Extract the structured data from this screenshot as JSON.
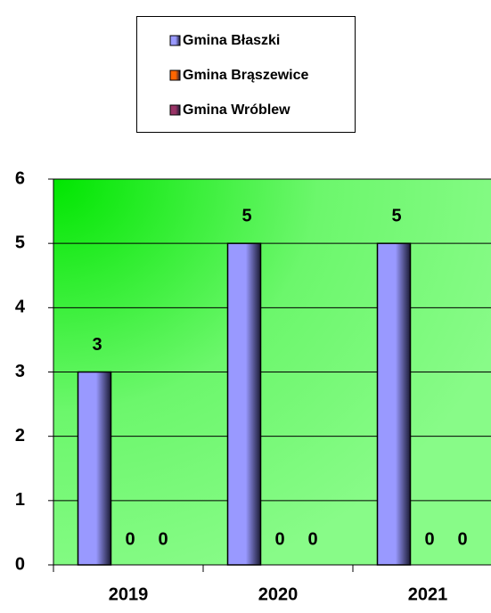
{
  "chart_data": {
    "type": "bar",
    "categories": [
      "2019",
      "2020",
      "2021"
    ],
    "series": [
      {
        "name": "Gmina Błaszki",
        "color": "#9999ff",
        "values": [
          3,
          5,
          5
        ]
      },
      {
        "name": "Gmina Brąszewice",
        "color": "#ff6600",
        "values": [
          0,
          0,
          0
        ]
      },
      {
        "name": "Gmina Wróblew",
        "color": "#993366",
        "values": [
          0,
          0,
          0
        ]
      }
    ],
    "ylim": [
      0,
      6
    ],
    "yticks": [
      0,
      1,
      2,
      3,
      4,
      5,
      6
    ],
    "grid": true,
    "legend": "top"
  }
}
